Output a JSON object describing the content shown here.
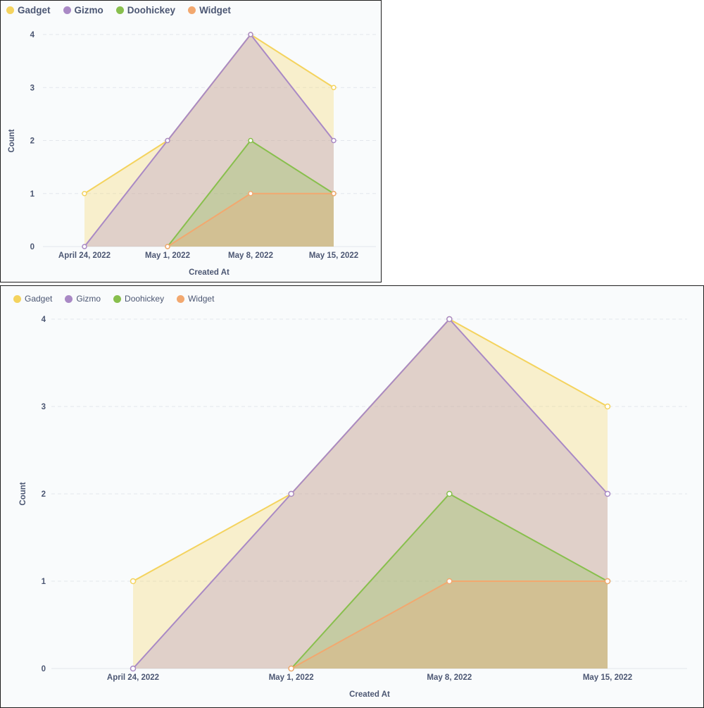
{
  "chart_data": [
    {
      "type": "area",
      "stacked": false,
      "categories": [
        "April 24, 2022",
        "May 1, 2022",
        "May 8, 2022",
        "May 15, 2022"
      ],
      "series": [
        {
          "name": "Gadget",
          "color": "#f4d35e",
          "values": [
            1,
            2,
            4,
            3
          ]
        },
        {
          "name": "Gizmo",
          "color": "#a989c5",
          "values": [
            0,
            2,
            4,
            2
          ]
        },
        {
          "name": "Doohickey",
          "color": "#88bf4d",
          "values": [
            null,
            0,
            2,
            1
          ]
        },
        {
          "name": "Widget",
          "color": "#f2a86f",
          "values": [
            null,
            0,
            1,
            1
          ]
        }
      ],
      "xlabel": "Created At",
      "ylabel": "Count",
      "ylim": [
        0,
        4
      ],
      "yticks": [
        "0",
        "1",
        "2",
        "3",
        "4"
      ],
      "grid": true,
      "legend_position": "top-left"
    },
    {
      "type": "area",
      "stacked": false,
      "categories": [
        "April 24, 2022",
        "May 1, 2022",
        "May 8, 2022",
        "May 15, 2022"
      ],
      "series": [
        {
          "name": "Gadget",
          "color": "#f4d35e",
          "values": [
            1,
            2,
            4,
            3
          ]
        },
        {
          "name": "Gizmo",
          "color": "#a989c5",
          "values": [
            0,
            2,
            4,
            2
          ]
        },
        {
          "name": "Doohickey",
          "color": "#88bf4d",
          "values": [
            null,
            0,
            2,
            1
          ]
        },
        {
          "name": "Widget",
          "color": "#f2a86f",
          "values": [
            null,
            0,
            1,
            1
          ]
        }
      ],
      "xlabel": "Created At",
      "ylabel": "Count",
      "ylim": [
        0,
        4
      ],
      "yticks": [
        "0",
        "1",
        "2",
        "3",
        "4"
      ],
      "grid": true,
      "legend_position": "top-left"
    }
  ]
}
